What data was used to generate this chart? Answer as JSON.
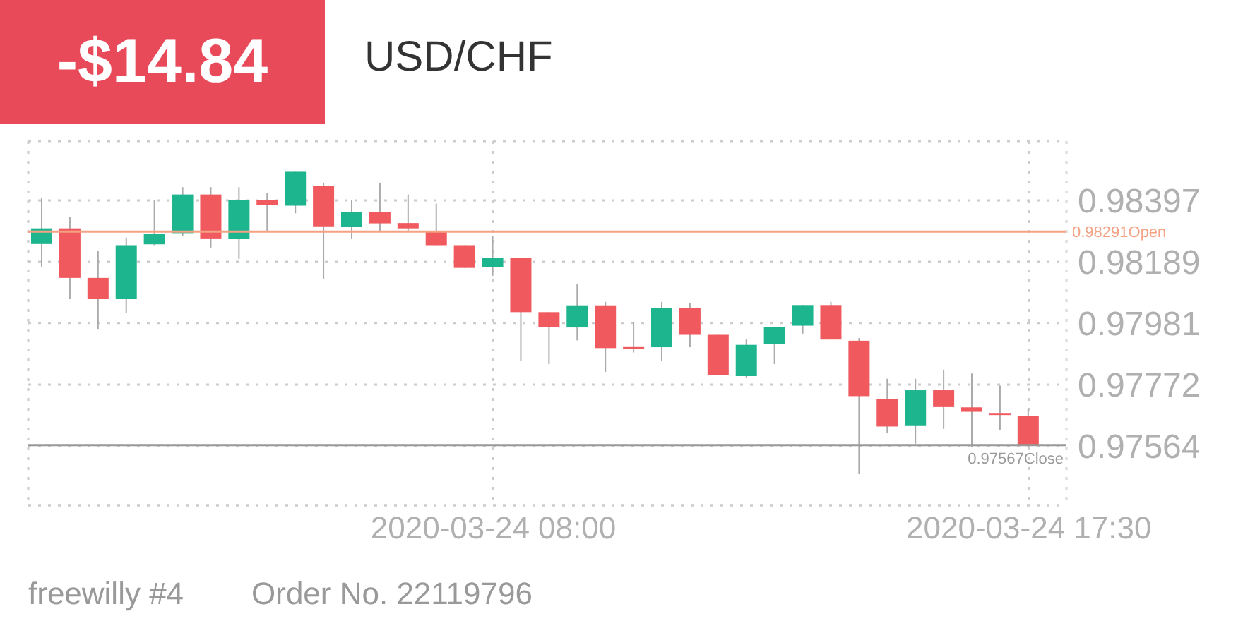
{
  "chart_data": {
    "type": "candlestick",
    "title": "USD/CHF",
    "annotations": [
      "-$14.84",
      "freewilly #4",
      "Order No. 22119796"
    ],
    "x": [
      "2020-03-24T00:00",
      "2020-03-24T00:30",
      "2020-03-24T01:00",
      "2020-03-24T01:30",
      "2020-03-24T02:00",
      "2020-03-24T02:30",
      "2020-03-24T03:00",
      "2020-03-24T03:30",
      "2020-03-24T04:00",
      "2020-03-24T04:30",
      "2020-03-24T05:00",
      "2020-03-24T05:30",
      "2020-03-24T06:00",
      "2020-03-24T06:30",
      "2020-03-24T07:00",
      "2020-03-24T07:30",
      "2020-03-24T08:00",
      "2020-03-24T08:30",
      "2020-03-24T09:00",
      "2020-03-24T09:30",
      "2020-03-24T10:00",
      "2020-03-24T10:30",
      "2020-03-24T11:00",
      "2020-03-24T11:30",
      "2020-03-24T12:00",
      "2020-03-24T12:30",
      "2020-03-24T13:00",
      "2020-03-24T13:30",
      "2020-03-24T14:00",
      "2020-03-24T14:30",
      "2020-03-24T15:00",
      "2020-03-24T15:30",
      "2020-03-24T16:00",
      "2020-03-24T16:30",
      "2020-03-24T17:00",
      "2020-03-24T17:30"
    ],
    "ohlc": [
      [
        0.98249,
        0.98406,
        0.98171,
        0.98302
      ],
      [
        0.98302,
        0.9834,
        0.98064,
        0.98134
      ],
      [
        0.98134,
        0.98226,
        0.97961,
        0.98064
      ],
      [
        0.98064,
        0.98271,
        0.98014,
        0.98245
      ],
      [
        0.98248,
        0.98399,
        0.98245,
        0.98284
      ],
      [
        0.98286,
        0.98442,
        0.98276,
        0.98417
      ],
      [
        0.98417,
        0.98442,
        0.98237,
        0.98268
      ],
      [
        0.98267,
        0.98442,
        0.98199,
        0.98397
      ],
      [
        0.98397,
        0.98422,
        0.98294,
        0.98382
      ],
      [
        0.98379,
        0.98494,
        0.98353,
        0.98494
      ],
      [
        0.98445,
        0.98457,
        0.9813,
        0.98309
      ],
      [
        0.98307,
        0.98399,
        0.98268,
        0.98357
      ],
      [
        0.98357,
        0.98457,
        0.98291,
        0.98319
      ],
      [
        0.9832,
        0.98417,
        0.98291,
        0.98302
      ],
      [
        0.98291,
        0.98386,
        0.98245,
        0.98245
      ],
      [
        0.98245,
        0.98245,
        0.98168,
        0.98168
      ],
      [
        0.98171,
        0.98276,
        0.98141,
        0.98202
      ],
      [
        0.98202,
        0.98202,
        0.97853,
        0.98018
      ],
      [
        0.98018,
        0.98018,
        0.97842,
        0.97968
      ],
      [
        0.97966,
        0.98114,
        0.97922,
        0.98041
      ],
      [
        0.98041,
        0.98053,
        0.97815,
        0.97896
      ],
      [
        0.97896,
        0.97984,
        0.97881,
        0.97896
      ],
      [
        0.97899,
        0.98053,
        0.97853,
        0.98033
      ],
      [
        0.98033,
        0.98048,
        0.97899,
        0.97941
      ],
      [
        0.97941,
        0.97941,
        0.97804,
        0.97804
      ],
      [
        0.97801,
        0.97925,
        0.97795,
        0.97907
      ],
      [
        0.9791,
        0.97968,
        0.97842,
        0.97968
      ],
      [
        0.97972,
        0.98042,
        0.97945,
        0.98042
      ],
      [
        0.98042,
        0.98053,
        0.97925,
        0.97925
      ],
      [
        0.97921,
        0.9793,
        0.97469,
        0.97733
      ],
      [
        0.97723,
        0.97792,
        0.97607,
        0.9763
      ],
      [
        0.97634,
        0.97792,
        0.97572,
        0.97753
      ],
      [
        0.97753,
        0.97823,
        0.97622,
        0.97696
      ],
      [
        0.97695,
        0.9781,
        0.97561,
        0.9768
      ],
      [
        0.97676,
        0.97769,
        0.97618,
        0.97669
      ],
      [
        0.97666,
        0.97692,
        0.97567,
        0.97567
      ]
    ],
    "colors": [
      "#1db58e",
      "#f0595e",
      "#f0595e",
      "#1db58e",
      "#1db58e",
      "#1db58e",
      "#f0595e",
      "#1db58e",
      "#f0595e",
      "#1db58e",
      "#f0595e",
      "#1db58e",
      "#f0595e",
      "#f0595e",
      "#f0595e",
      "#f0595e",
      "#1db58e",
      "#f0595e",
      "#f0595e",
      "#1db58e",
      "#f0595e",
      "#f0595e",
      "#1db58e",
      "#f0595e",
      "#f0595e",
      "#1db58e",
      "#1db58e",
      "#1db58e",
      "#f0595e",
      "#f0595e",
      "#f0595e",
      "#1db58e",
      "#f0595e",
      "#f0595e",
      "#f0595e",
      "#f0595e"
    ],
    "xlim": [
      "2020-03-23T23:45",
      "2020-03-24T18:10"
    ],
    "xticks": [
      {
        "value": "2020-03-24T08:00",
        "label": "2020-03-24 08:00"
      },
      {
        "value": "2020-03-24T17:30",
        "label": "2020-03-24 17:30"
      }
    ],
    "ylim": [
      0.97363,
      0.98598
    ],
    "yticks": [
      0.98397,
      0.98189,
      0.97981,
      0.97772,
      0.97564
    ],
    "ref_lines": [
      {
        "axis": "y",
        "value": 0.98291,
        "label": "0.98291Open",
        "color": "#f4a283"
      },
      {
        "axis": "y",
        "value": 0.97567,
        "label": "0.97567Close",
        "color": "#999999"
      }
    ],
    "grid": true
  }
}
